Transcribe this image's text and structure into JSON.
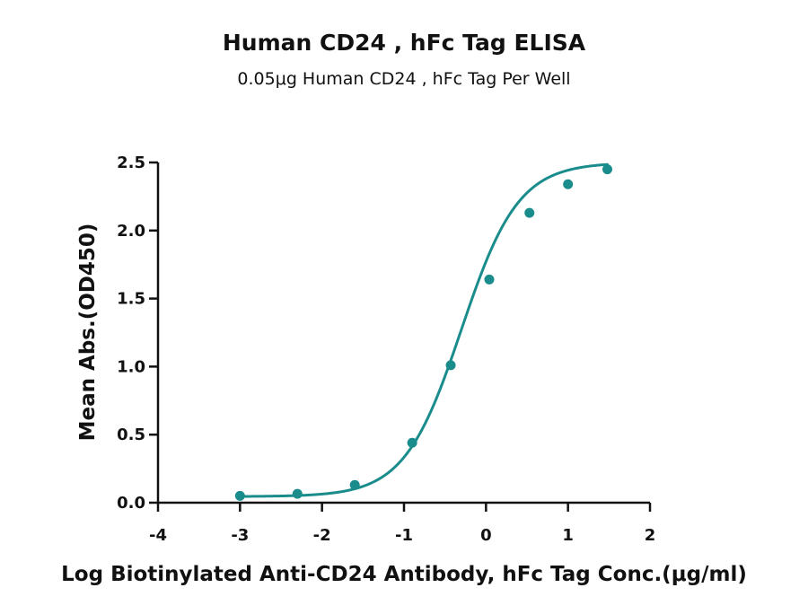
{
  "chart_data": {
    "type": "scatter",
    "title": "Human CD24 , hFc Tag ELISA",
    "subtitle": "0.05μg Human CD24 , hFc Tag Per Well",
    "xlabel": "Log Biotinylated Anti-CD24 Antibody, hFc Tag Conc.(μg/ml)",
    "ylabel": "Mean Abs.(OD450)",
    "xlim": [
      -4,
      2
    ],
    "ylim": [
      0,
      2.5
    ],
    "xticks": [
      -4,
      -3,
      -2,
      -1,
      0,
      1,
      2
    ],
    "yticks": [
      0.0,
      0.5,
      1.0,
      1.5,
      2.0,
      2.5
    ],
    "xtick_labels": [
      "-4",
      "-3",
      "-2",
      "-1",
      "0",
      "1",
      "2"
    ],
    "ytick_labels": [
      "0.0",
      "0.5",
      "1.0",
      "1.5",
      "2.0",
      "2.5"
    ],
    "fit": "4PL sigmoidal",
    "color": "#1a8c8c",
    "grid": false,
    "series": [
      {
        "x": [
          -3.0,
          -2.3,
          -1.6,
          -0.9,
          -0.43,
          0.04,
          0.53,
          1.0,
          1.48
        ],
        "y": [
          0.05,
          0.065,
          0.13,
          0.44,
          1.01,
          1.64,
          2.13,
          2.34,
          2.45
        ]
      }
    ]
  }
}
